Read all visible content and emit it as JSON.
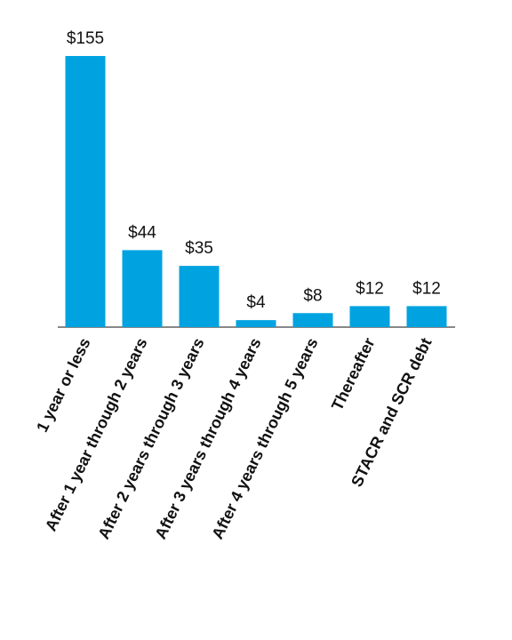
{
  "chart_data": {
    "type": "bar",
    "categories": [
      "1 year or less",
      "After 1 year through 2 years",
      "After 2 years through 3 years",
      "After 3 years through 4 years",
      "After 4 years through 5 years",
      "Thereafter",
      "STACR and SCR debt"
    ],
    "values": [
      155,
      44,
      35,
      4,
      8,
      12,
      12
    ],
    "value_labels": [
      "$155",
      "$44",
      "$35",
      "$4",
      "$8",
      "$12",
      "$12"
    ],
    "color": "#00a3e0"
  }
}
